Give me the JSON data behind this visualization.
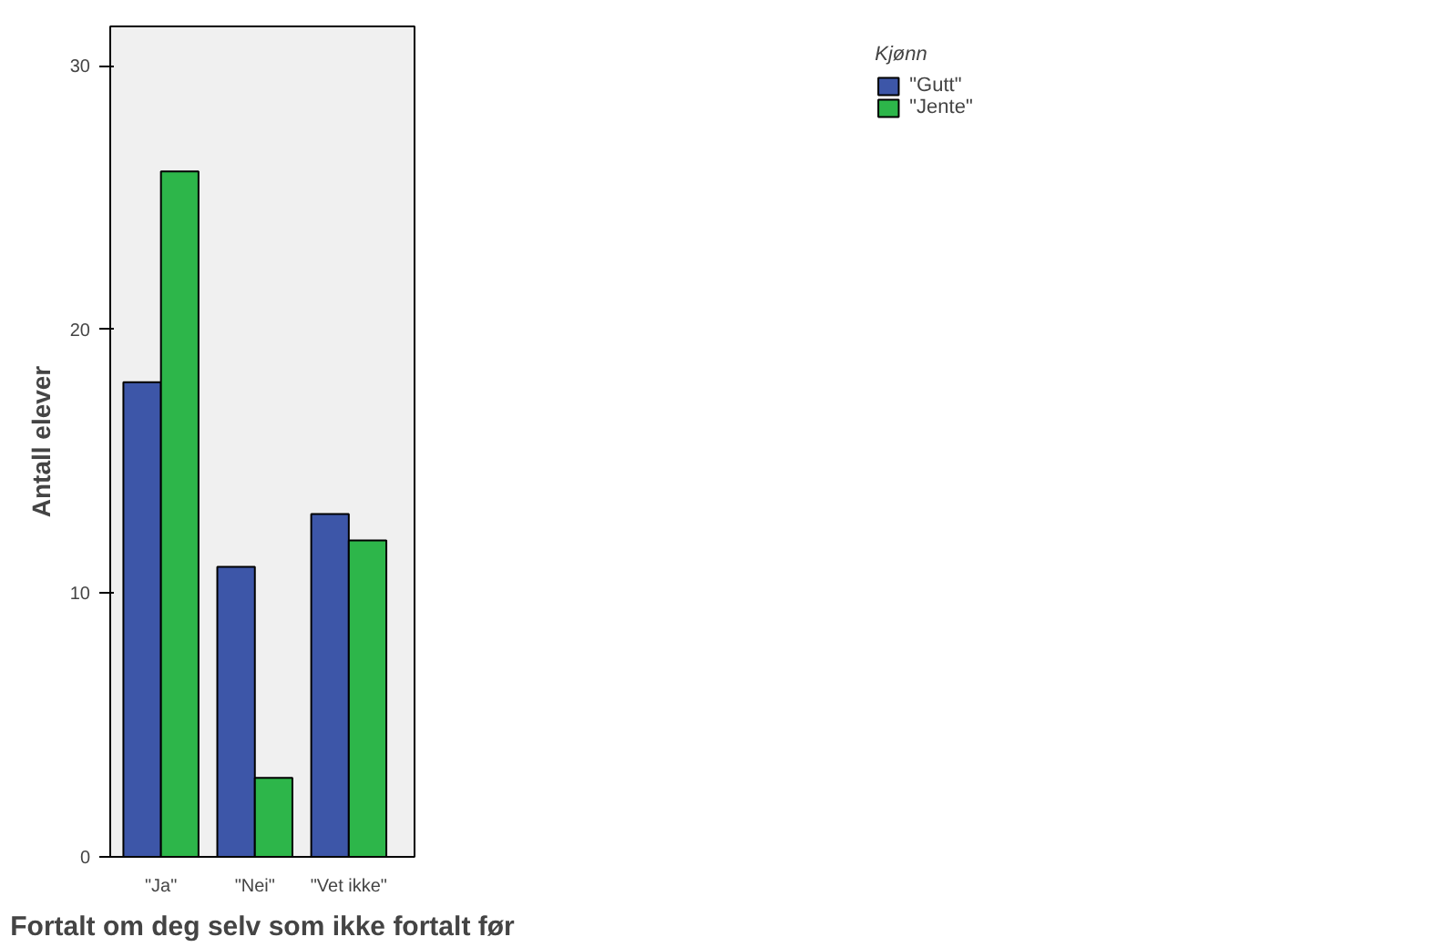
{
  "chart_data": {
    "type": "bar",
    "xlabel": "Fortalt om deg selv som ikke fortalt før",
    "ylabel": "Antall elever",
    "legend_title": "Kjønn",
    "categories": [
      "\"Ja\"",
      "\"Nei\"",
      "\"Vet ikke\""
    ],
    "series": [
      {
        "name": "\"Gutt\"",
        "color": "#3d56a8",
        "values": [
          18,
          11,
          13
        ]
      },
      {
        "name": "\"Jente\"",
        "color": "#2db64a",
        "values": [
          26,
          3,
          12
        ]
      }
    ],
    "ylim": [
      0,
      31.5
    ],
    "yticks": [
      0,
      10,
      20,
      30
    ],
    "grid": false,
    "legend": "top right"
  }
}
